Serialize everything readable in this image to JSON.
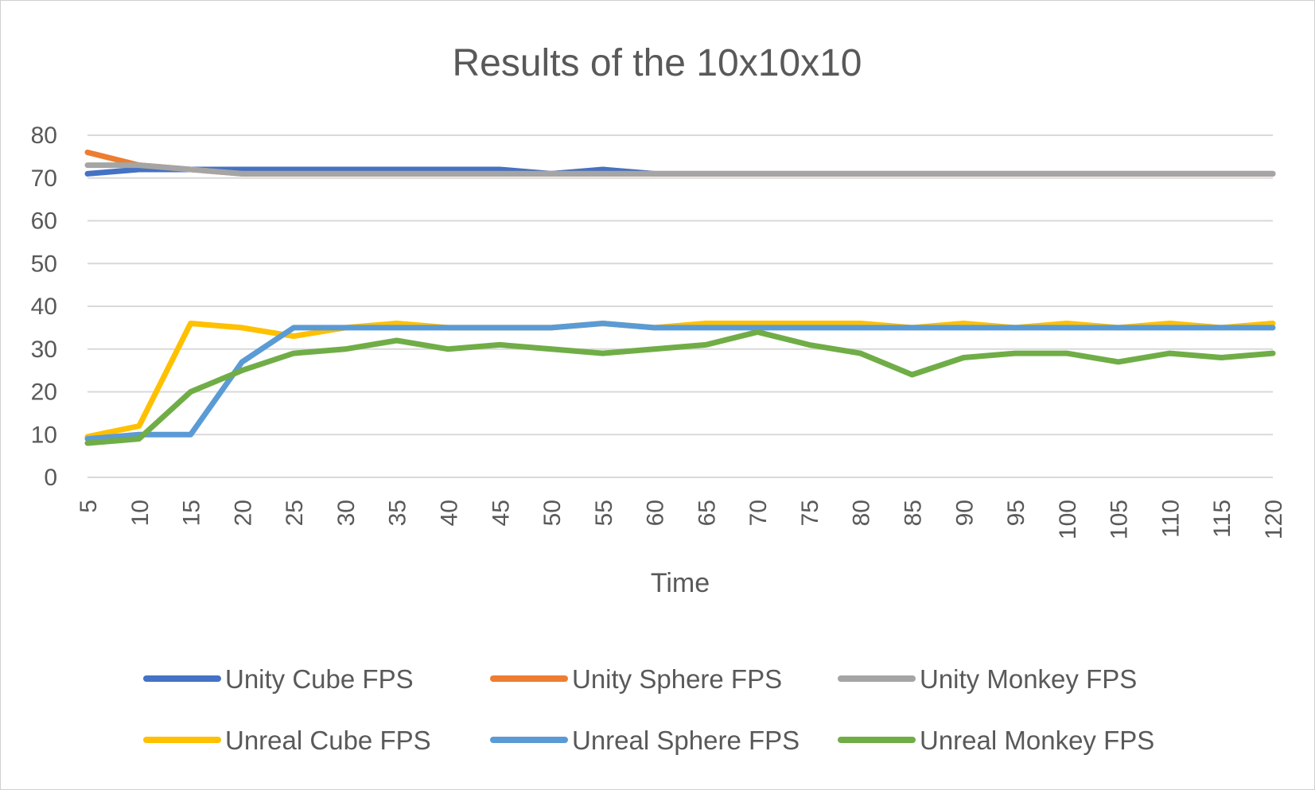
{
  "chart_data": {
    "type": "line",
    "title": "Results of the 10x10x10",
    "xlabel": "Time",
    "ylabel": "",
    "x": [
      5,
      10,
      15,
      20,
      25,
      30,
      35,
      40,
      45,
      50,
      55,
      60,
      65,
      70,
      75,
      80,
      85,
      90,
      95,
      100,
      105,
      110,
      115,
      120
    ],
    "ylim": [
      0,
      80
    ],
    "yticks": [
      0,
      10,
      20,
      30,
      40,
      50,
      60,
      70,
      80
    ],
    "grid": true,
    "legend_position": "bottom",
    "series": [
      {
        "name": "Unity Cube FPS",
        "color": "#4472C4",
        "values": [
          71,
          72,
          72,
          72,
          72,
          72,
          72,
          72,
          72,
          71,
          72,
          71,
          71,
          71,
          71,
          71,
          71,
          71,
          71,
          71,
          71,
          71,
          71,
          71
        ]
      },
      {
        "name": "Unity Sphere FPS",
        "color": "#ED7D31",
        "values": [
          76,
          73,
          72,
          71,
          71,
          71,
          71,
          71,
          71,
          71,
          71,
          71,
          71,
          71,
          71,
          71,
          71,
          71,
          71,
          71,
          71,
          71,
          71,
          71
        ]
      },
      {
        "name": "Unity Monkey FPS",
        "color": "#A5A5A5",
        "values": [
          73,
          73,
          72,
          71,
          71,
          71,
          71,
          71,
          71,
          71,
          71,
          71,
          71,
          71,
          71,
          71,
          71,
          71,
          71,
          71,
          71,
          71,
          71,
          71
        ]
      },
      {
        "name": "Unreal Cube FPS",
        "color": "#FFC000",
        "values": [
          9.5,
          12,
          36,
          35,
          33,
          35,
          36,
          35,
          35,
          35,
          36,
          35,
          36,
          36,
          36,
          36,
          35,
          36,
          35,
          36,
          35,
          36,
          35,
          36
        ]
      },
      {
        "name": "Unreal Sphere FPS",
        "color": "#5B9BD5",
        "values": [
          9,
          10,
          10,
          27,
          35,
          35,
          35,
          35,
          35,
          35,
          36,
          35,
          35,
          35,
          35,
          35,
          35,
          35,
          35,
          35,
          35,
          35,
          35,
          35
        ]
      },
      {
        "name": "Unreal Monkey FPS",
        "color": "#70AD47",
        "values": [
          8,
          9,
          20,
          25,
          29,
          30,
          32,
          30,
          31,
          30,
          29,
          30,
          31,
          34,
          31,
          29,
          24,
          28,
          29,
          29,
          27,
          29,
          28,
          29
        ]
      }
    ]
  }
}
